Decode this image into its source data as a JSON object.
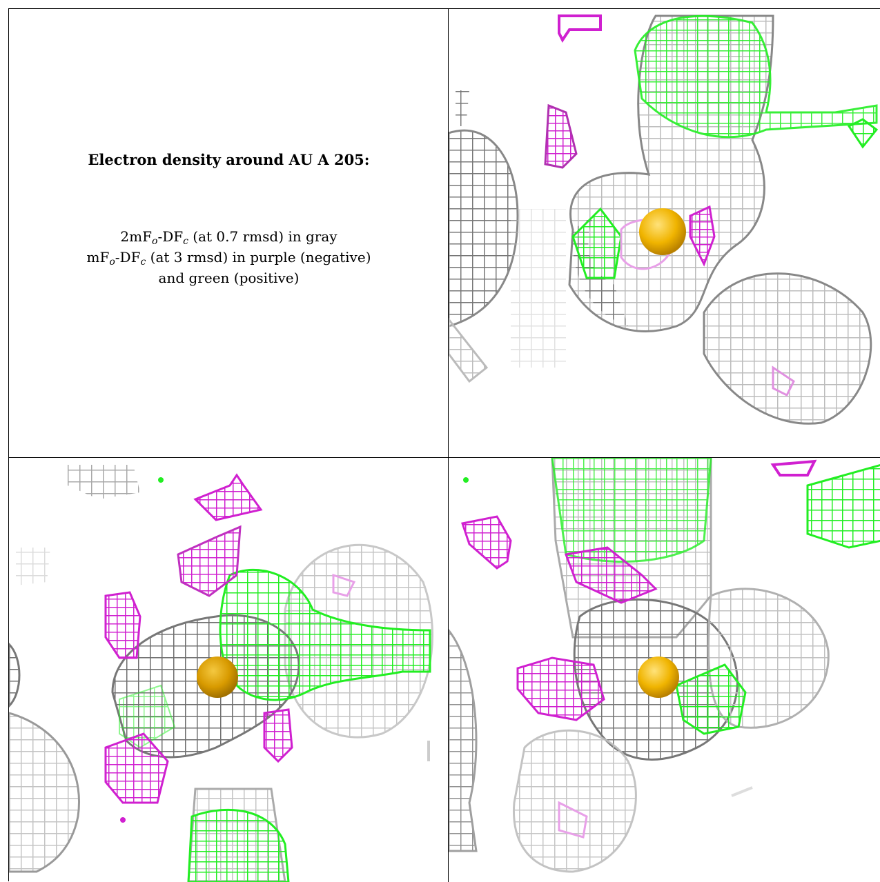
{
  "caption": {
    "title": "Electron density around AU A 205:",
    "line1_prefix": "2mF",
    "line1_mid": "-DF",
    "line1_suffix": " (at 0.7 rmsd) in gray",
    "line2_prefix": "mF",
    "line2_mid": "-DF",
    "line2_suffix": " (at 3 rmsd) in purple (negative)",
    "line3": "and green (positive)",
    "sub_o": "o",
    "sub_c": "c"
  },
  "colors": {
    "gray_mesh": "#bdbdbd",
    "dark_mesh": "#7a7a7a",
    "negative_mesh": "#d020d0",
    "positive_mesh": "#22ee22",
    "gold_atom": "#f0b400"
  },
  "panels": [
    {
      "id": "view-1",
      "atom": "AU A 205"
    },
    {
      "id": "view-2",
      "atom": "AU A 205"
    },
    {
      "id": "view-3",
      "atom": "AU A 205"
    }
  ]
}
